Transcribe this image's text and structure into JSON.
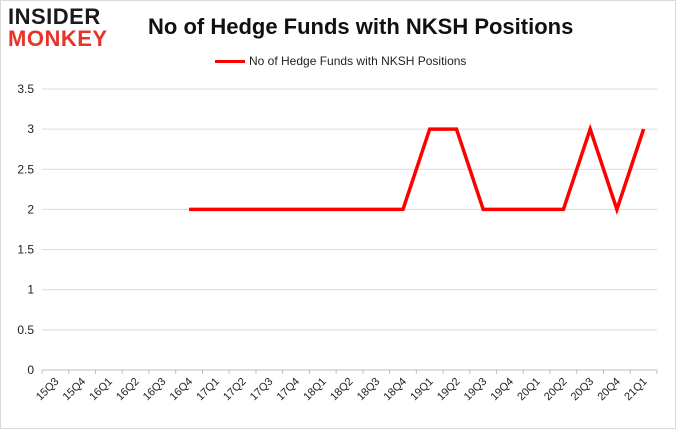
{
  "brand": {
    "line1": "INSIDER",
    "line2": "MONKEY"
  },
  "colors": {
    "series": "#ff0000",
    "grid": "#d9d9d9",
    "brand_red": "#e8332a"
  },
  "chart_data": {
    "type": "line",
    "title": "No of Hedge Funds with NKSH Positions",
    "xlabel": "",
    "ylabel": "",
    "ylim": [
      0,
      3.5
    ],
    "yticks": [
      "0",
      "0.5",
      "1",
      "1.5",
      "2",
      "2.5",
      "3",
      "3.5"
    ],
    "ytick_values": [
      0,
      0.5,
      1,
      1.5,
      2,
      2.5,
      3,
      3.5
    ],
    "grid": "horizontal",
    "legend": "top-center",
    "categories": [
      "15Q3",
      "15Q4",
      "16Q1",
      "16Q2",
      "16Q3",
      "16Q4",
      "17Q1",
      "17Q2",
      "17Q3",
      "17Q4",
      "18Q1",
      "18Q2",
      "18Q3",
      "18Q4",
      "19Q1",
      "19Q2",
      "19Q3",
      "19Q4",
      "20Q1",
      "20Q2",
      "20Q3",
      "20Q4",
      "21Q1"
    ],
    "series": [
      {
        "name": "No of Hedge Funds with NKSH Positions",
        "values": [
          null,
          null,
          null,
          null,
          null,
          2,
          2,
          2,
          2,
          2,
          2,
          2,
          2,
          2,
          3,
          3,
          2,
          2,
          2,
          2,
          3,
          2,
          3
        ]
      }
    ]
  }
}
